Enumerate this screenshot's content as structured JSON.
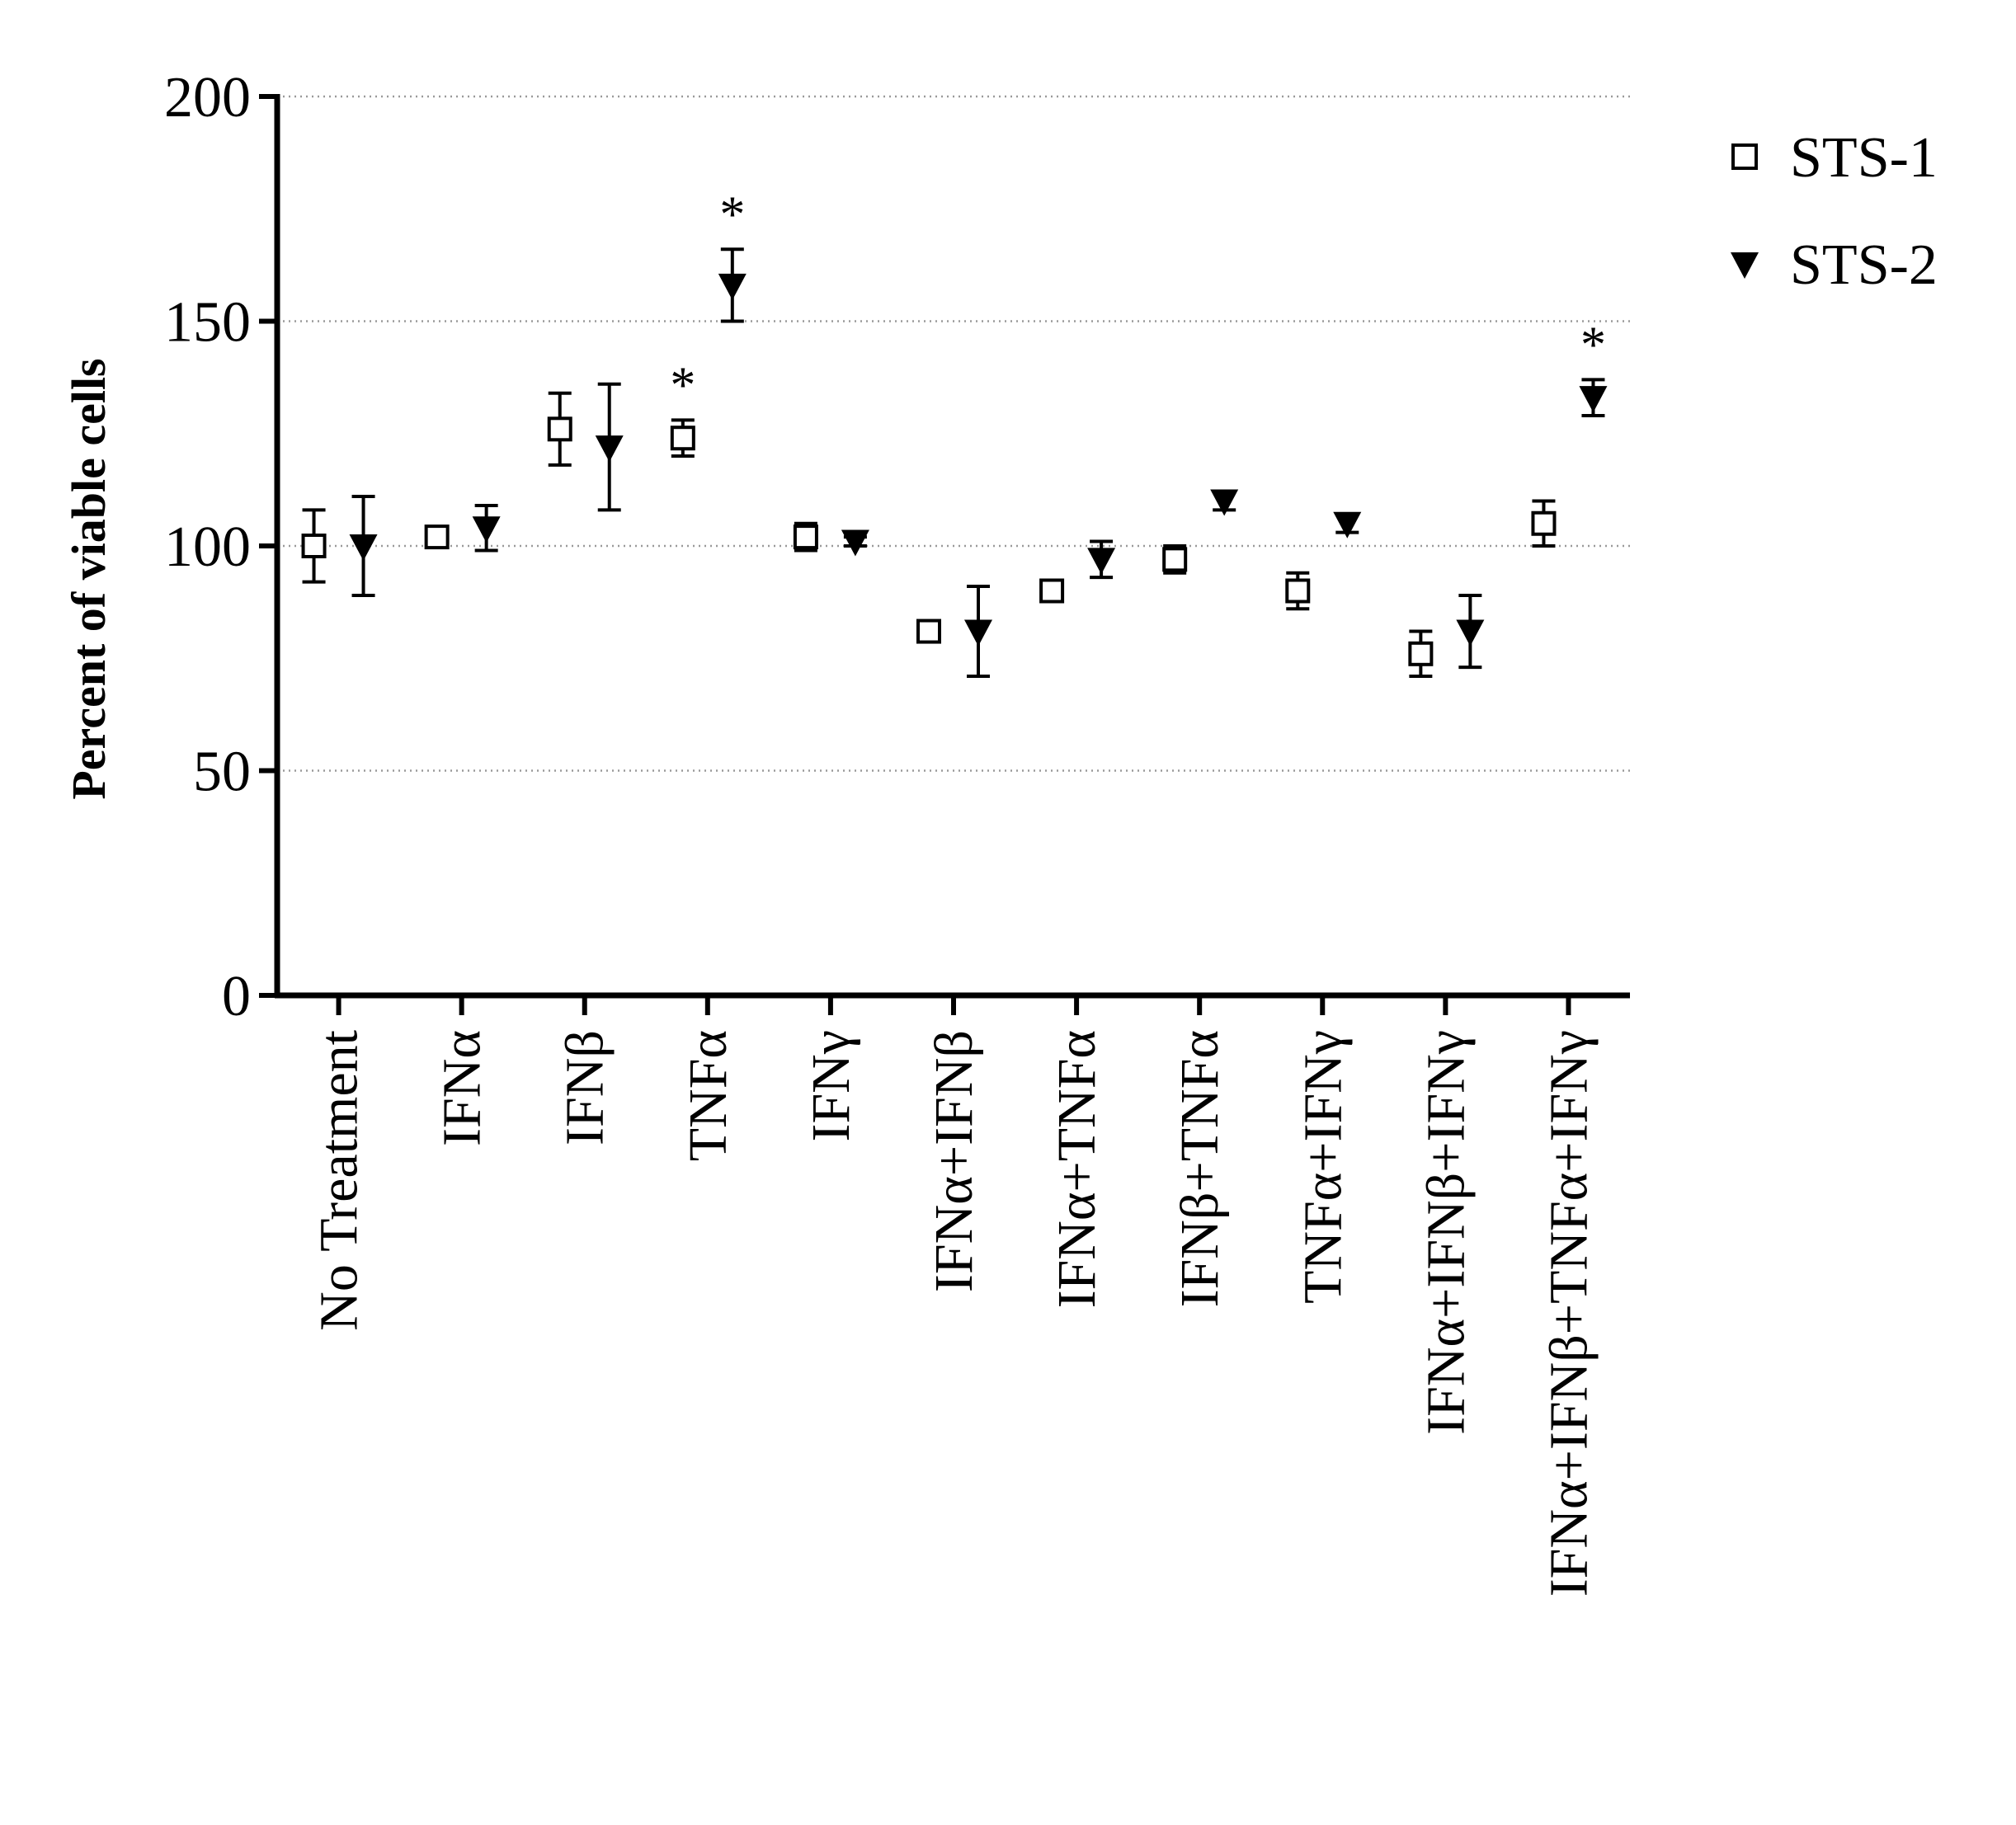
{
  "chart_data": {
    "type": "scatter",
    "title": "",
    "xlabel": "",
    "ylabel": "Percent of viable cells",
    "ylim": [
      0,
      200
    ],
    "yticks": [
      "0",
      "50",
      "100",
      "150",
      "200"
    ],
    "grid": "horizontal dotted",
    "legend_position": "top-right",
    "categories": [
      "No Treatment",
      "IFNα",
      "IFNβ",
      "TNFα",
      "IFNγ",
      "IFNα+IFNβ",
      "IFNα+TNFα",
      "IFNβ+TNFα",
      "TNFα+IFNγ",
      "IFNα+IFNβ+IFNγ",
      "IFNα+IFNβ+TNFα+IFNγ"
    ],
    "series": [
      {
        "name": "STS-1",
        "marker": "open-square",
        "color": "#000000",
        "values": [
          100,
          102,
          126,
          124,
          102,
          81,
          90,
          97,
          90,
          76,
          105
        ],
        "error": [
          8,
          1,
          8,
          4,
          3,
          1,
          1,
          3,
          4,
          5,
          5
        ],
        "significant": [
          false,
          false,
          false,
          true,
          false,
          false,
          false,
          false,
          false,
          false,
          false
        ]
      },
      {
        "name": "STS-2",
        "marker": "filled-triangle-down",
        "color": "#000000",
        "values": [
          100,
          104,
          122,
          158,
          101,
          81,
          97,
          110,
          105,
          81,
          133
        ],
        "error": [
          11,
          5,
          14,
          8,
          1,
          10,
          4,
          2,
          2,
          8,
          4
        ],
        "significant": [
          false,
          false,
          false,
          true,
          false,
          false,
          false,
          false,
          false,
          false,
          true
        ]
      }
    ],
    "significance_marker": "*"
  }
}
